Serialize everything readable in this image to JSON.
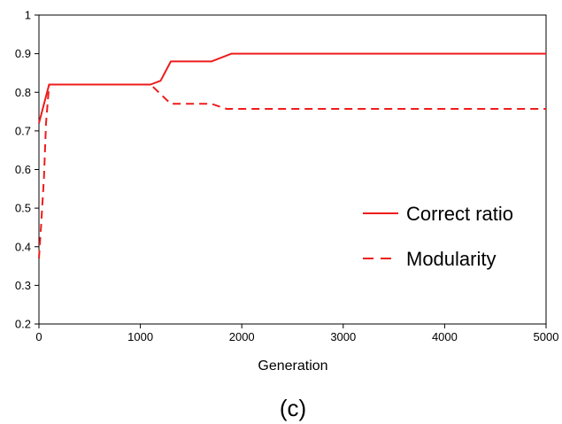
{
  "chart_data": {
    "type": "line",
    "caption": "(c)",
    "xlabel": "Generation",
    "ylabel": "",
    "xlim": [
      0,
      5000
    ],
    "ylim": [
      0.2,
      1.0
    ],
    "x_ticks": [
      "0",
      "1000",
      "2000",
      "3000",
      "4000",
      "5000"
    ],
    "y_ticks": [
      "0.2",
      "0.3",
      "0.4",
      "0.5",
      "0.6",
      "0.7",
      "0.8",
      "0.9",
      "1"
    ],
    "grid": false,
    "legend_position": "right-middle",
    "series": [
      {
        "name": "Correct ratio",
        "style": "solid",
        "color": "#ee1c1c",
        "points": [
          [
            0,
            0.72
          ],
          [
            100,
            0.82
          ],
          [
            1100,
            0.82
          ],
          [
            1200,
            0.83
          ],
          [
            1300,
            0.88
          ],
          [
            1700,
            0.88
          ],
          [
            1900,
            0.9
          ],
          [
            5000,
            0.9
          ]
        ]
      },
      {
        "name": "Modularity",
        "style": "dashed",
        "color": "#ee1c1c",
        "points": [
          [
            0,
            0.37
          ],
          [
            20,
            0.45
          ],
          [
            50,
            0.58
          ],
          [
            70,
            0.72
          ],
          [
            100,
            0.82
          ],
          [
            1100,
            0.82
          ],
          [
            1300,
            0.77
          ],
          [
            1700,
            0.77
          ],
          [
            1850,
            0.757
          ],
          [
            5000,
            0.757
          ]
        ]
      }
    ]
  }
}
